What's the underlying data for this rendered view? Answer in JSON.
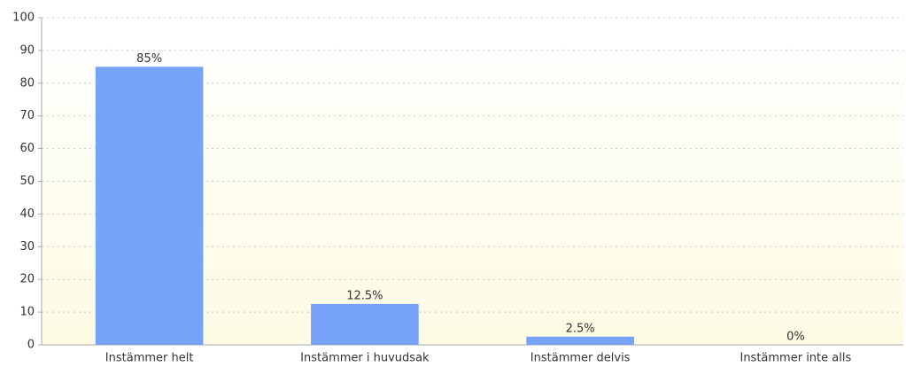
{
  "chart_data": {
    "type": "bar",
    "categories": [
      "Instämmer helt",
      "Instämmer i huvudsak",
      "Instämmer delvis",
      "Instämmer inte alls"
    ],
    "values": [
      85,
      12.5,
      2.5,
      0
    ],
    "value_labels": [
      "85%",
      "12.5%",
      "2.5%",
      "0%"
    ],
    "color": "#76a3f8",
    "ylim": [
      0,
      100
    ],
    "yticks": [
      0,
      10,
      20,
      30,
      40,
      50,
      60,
      70,
      80,
      90,
      100
    ],
    "grid": true
  }
}
